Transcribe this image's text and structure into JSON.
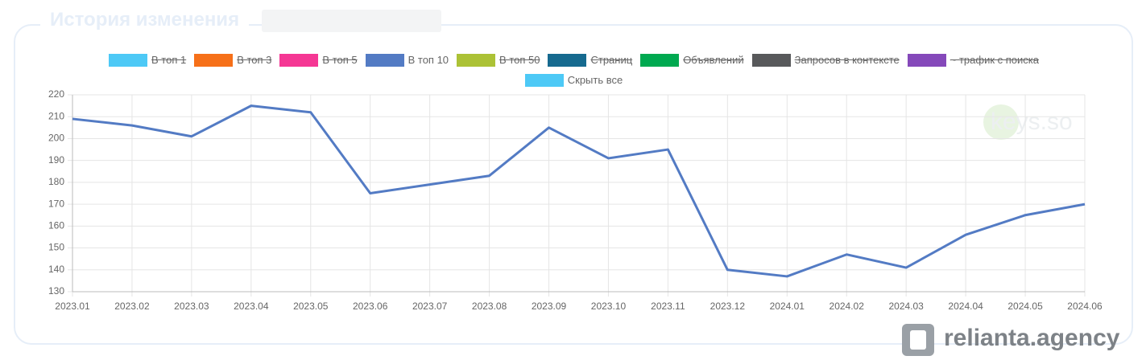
{
  "header": {
    "title": "История изменения"
  },
  "chart_data": {
    "type": "line",
    "x": [
      "2023.01",
      "2023.02",
      "2023.03",
      "2023.04",
      "2023.05",
      "2023.06",
      "2023.07",
      "2023.08",
      "2023.09",
      "2023.10",
      "2023.11",
      "2023.12",
      "2024.01",
      "2024.02",
      "2024.03",
      "2024.04",
      "2024.05",
      "2024.06"
    ],
    "series": [
      {
        "name": "В топ 1",
        "color": "#4dc9f6",
        "hidden": true
      },
      {
        "name": "В топ 3",
        "color": "#f67019",
        "hidden": true
      },
      {
        "name": "В топ 5",
        "color": "#f53794",
        "hidden": true
      },
      {
        "name": "В топ 10",
        "color": "#537bc4",
        "values": [
          209,
          206,
          201,
          215,
          212,
          175,
          179,
          183,
          205,
          191,
          195,
          140,
          137,
          147,
          141,
          156,
          165,
          170
        ]
      },
      {
        "name": "В топ 50",
        "color": "#acc236",
        "hidden": true
      },
      {
        "name": "Страниц",
        "color": "#166a8f",
        "hidden": true
      },
      {
        "name": "Объявлений",
        "color": "#00a950",
        "hidden": true
      },
      {
        "name": "Запросов в контексте",
        "color": "#58595b",
        "hidden": true
      },
      {
        "name": "~ трафик с поиска",
        "color": "#8549ba",
        "hidden": true
      }
    ],
    "hide_all": {
      "label": "Скрыть все",
      "color": "#4dc9f6"
    },
    "ylim": [
      130,
      220
    ],
    "yticks": [
      130,
      140,
      150,
      160,
      170,
      180,
      190,
      200,
      210,
      220
    ],
    "grid": true
  },
  "watermarks": [
    "keys.so",
    "relianta.agency"
  ]
}
